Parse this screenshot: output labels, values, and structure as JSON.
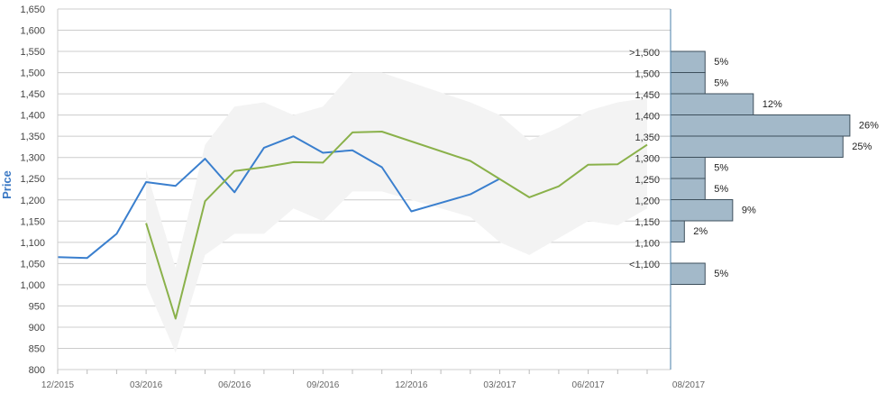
{
  "chart_data": {
    "type": "line",
    "ylabel": "Price",
    "ylim": [
      800,
      1650
    ],
    "y_ticks": [
      800,
      850,
      900,
      950,
      1000,
      1050,
      1100,
      1150,
      1200,
      1250,
      1300,
      1350,
      1400,
      1450,
      1500,
      1550,
      1600,
      1650
    ],
    "y_tick_labels": [
      "800",
      "850",
      "900",
      "950",
      "1,000",
      "1,050",
      "1,100",
      "1,150",
      "1,200",
      "1,250",
      "1,300",
      "1,350",
      "1,400",
      "1,450",
      "1,500",
      "1,550",
      "1,600",
      "1,650"
    ],
    "x_tick_labels": [
      "12/2015",
      "03/2016",
      "06/2016",
      "09/2016",
      "12/2016",
      "03/2017",
      "06/2017",
      "08/2017"
    ],
    "grid": true,
    "colors": {
      "actual": "#3a7fce",
      "forecast": "#8ab14a",
      "band": "#f3f3f3",
      "bar_fill": "#a3b9c9",
      "bar_stroke": "#3d4f5c",
      "grid": "#cccccc",
      "axis": "#4a7fa8"
    },
    "series": [
      {
        "key": "actual",
        "values": [
          [
            0,
            1065
          ],
          [
            1,
            1063
          ],
          [
            2,
            1120
          ],
          [
            3,
            1242
          ],
          [
            4,
            1233
          ],
          [
            5,
            1297
          ],
          [
            6,
            1218
          ],
          [
            7,
            1323
          ],
          [
            8,
            1350
          ],
          [
            9,
            1311
          ],
          [
            10,
            1317
          ],
          [
            11,
            1277
          ],
          [
            12,
            1173
          ],
          [
            13,
            1193
          ],
          [
            14,
            1213
          ],
          [
            15,
            1250
          ]
        ]
      },
      {
        "key": "forecast",
        "values": [
          [
            3,
            1145
          ],
          [
            4,
            920
          ],
          [
            5,
            1197
          ],
          [
            6,
            1268
          ],
          [
            7,
            1277
          ],
          [
            8,
            1289
          ],
          [
            9,
            1288
          ],
          [
            10,
            1359
          ],
          [
            11,
            1361
          ],
          [
            14,
            1292
          ],
          [
            16,
            1206
          ],
          [
            17,
            1232
          ],
          [
            18,
            1283
          ],
          [
            19,
            1284
          ],
          [
            20,
            1330
          ]
        ]
      }
    ],
    "band": {
      "upper": [
        [
          3,
          1270
        ],
        [
          4,
          1040
        ],
        [
          5,
          1330
        ],
        [
          6,
          1420
        ],
        [
          7,
          1430
        ],
        [
          8,
          1400
        ],
        [
          9,
          1420
        ],
        [
          10,
          1500
        ],
        [
          11,
          1500
        ],
        [
          14,
          1430
        ],
        [
          15,
          1400
        ],
        [
          16,
          1340
        ],
        [
          17,
          1370
        ],
        [
          18,
          1410
        ],
        [
          19,
          1430
        ],
        [
          20,
          1440
        ]
      ],
      "lower": [
        [
          3,
          1000
        ],
        [
          4,
          840
        ],
        [
          5,
          1070
        ],
        [
          6,
          1120
        ],
        [
          7,
          1120
        ],
        [
          8,
          1180
        ],
        [
          9,
          1150
        ],
        [
          10,
          1220
        ],
        [
          11,
          1220
        ],
        [
          14,
          1160
        ],
        [
          15,
          1100
        ],
        [
          16,
          1070
        ],
        [
          17,
          1110
        ],
        [
          18,
          1150
        ],
        [
          19,
          1140
        ],
        [
          20,
          1180
        ]
      ]
    },
    "distribution": [
      {
        "label": ">1,500",
        "pct": 5,
        "text": "5%"
      },
      {
        "label": "1,500",
        "pct": 5,
        "text": "5%"
      },
      {
        "label": "1,450",
        "pct": 12,
        "text": "12%"
      },
      {
        "label": "1,400",
        "pct": 26,
        "text": "26%"
      },
      {
        "label": "1,350",
        "pct": 25,
        "text": "25%"
      },
      {
        "label": "1,300",
        "pct": 5,
        "text": "5%"
      },
      {
        "label": "1,250",
        "pct": 5,
        "text": "5%"
      },
      {
        "label": "1,200",
        "pct": 9,
        "text": "9%"
      },
      {
        "label": "1,150",
        "pct": 2,
        "text": "2%"
      },
      {
        "label": "1,100",
        "pct": 0,
        "text": ""
      },
      {
        "label": "<1,100",
        "pct": 5,
        "text": "5%"
      }
    ]
  }
}
